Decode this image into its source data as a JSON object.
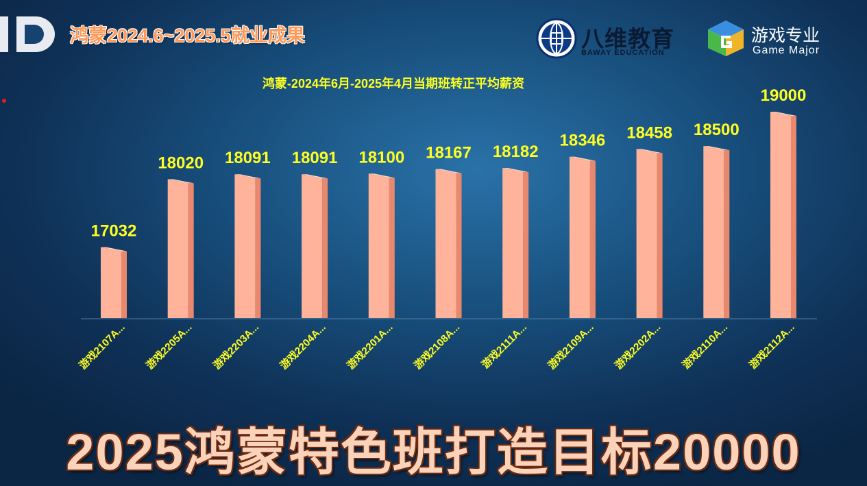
{
  "header": {
    "title": "鸿蒙2024.6~2025.5就业成果"
  },
  "brands": {
    "bawei": {
      "name": "八维教育",
      "subtitle": "BAWAY EDUCATION"
    },
    "game": {
      "name": "游戏专业",
      "subtitle": "Game Major"
    }
  },
  "colors": {
    "bar_front": "#ffb39a",
    "bar_side": "#e9886c",
    "bar_top": "#ffd2c0",
    "value_label": "#ffff22",
    "category_label": "#ffff22",
    "chart_title": "#ffff22"
  },
  "chart_data": {
    "type": "bar",
    "title": "鸿蒙-2024年6月-2025年4月当期班转正平均薪资",
    "categories": [
      "游戏2107A...",
      "游戏2205A...",
      "游戏2203A...",
      "游戏2204A...",
      "游戏2201A...",
      "游戏2108A...",
      "游戏2111A...",
      "游戏2109A...",
      "游戏2202A...",
      "游戏2110A...",
      "游戏2112A..."
    ],
    "values": [
      17032,
      18020,
      18091,
      18091,
      18100,
      18167,
      18182,
      18346,
      18458,
      18500,
      19000
    ],
    "xlabel": "",
    "ylabel": "",
    "ylim": [
      16000,
      19000
    ],
    "grid": false,
    "legend": "none"
  },
  "footer": {
    "slogan": "2025鸿蒙特色班打造目标20000"
  }
}
